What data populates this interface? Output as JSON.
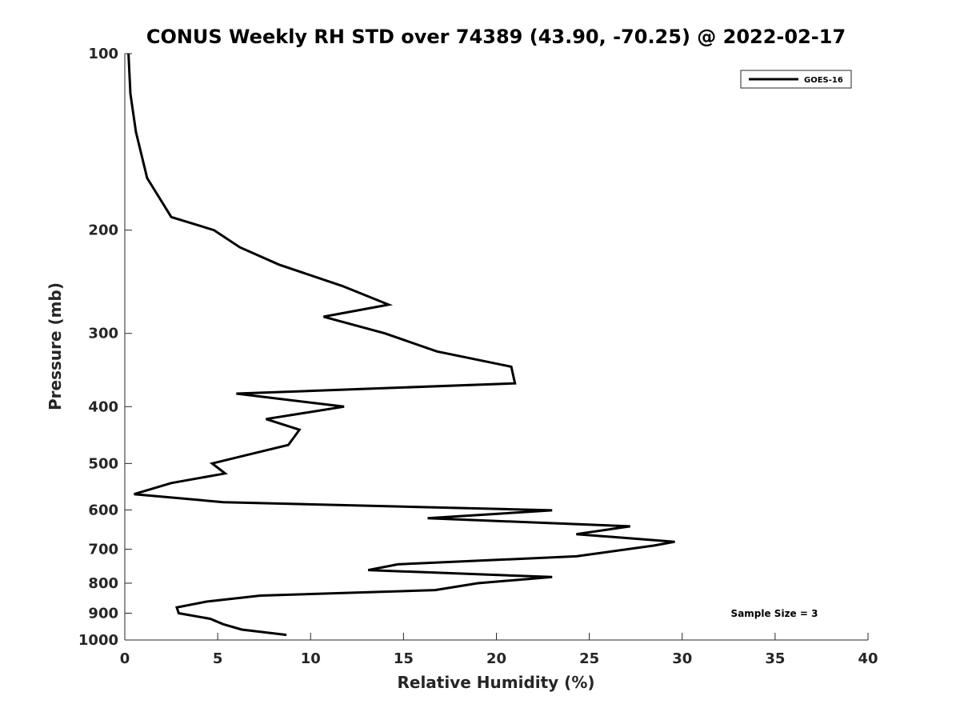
{
  "chart_data": {
    "type": "line",
    "title": "CONUS Weekly RH STD over 74389 (43.90, -70.25) @ 2022-02-17",
    "xlabel": "Relative Humidity (%)",
    "ylabel": "Pressure (mb)",
    "xlim": [
      0,
      40
    ],
    "ylim": [
      100,
      1000
    ],
    "y_scale": "log",
    "y_reversed": true,
    "grid": false,
    "legend_position": "top-right",
    "x_ticks": [
      "0",
      "5",
      "10",
      "15",
      "20",
      "25",
      "30",
      "35",
      "40"
    ],
    "y_ticks": [
      "100",
      "200",
      "300",
      "400",
      "500",
      "600",
      "700",
      "800",
      "900",
      "1000"
    ],
    "series": [
      {
        "name": "GOES-16",
        "color": "#000000",
        "points": [
          [
            0.2,
            100
          ],
          [
            0.3,
            117
          ],
          [
            0.6,
            136
          ],
          [
            1.2,
            163
          ],
          [
            2.5,
            190
          ],
          [
            4.8,
            200
          ],
          [
            6.2,
            214
          ],
          [
            8.3,
            229
          ],
          [
            11.7,
            249
          ],
          [
            14.2,
            268
          ],
          [
            10.7,
            281
          ],
          [
            14.0,
            300
          ],
          [
            16.8,
            322
          ],
          [
            20.8,
            342
          ],
          [
            21.0,
            365
          ],
          [
            6.0,
            380
          ],
          [
            11.8,
            400
          ],
          [
            7.6,
            420
          ],
          [
            9.4,
            438
          ],
          [
            8.8,
            465
          ],
          [
            7.0,
            480
          ],
          [
            4.7,
            500
          ],
          [
            5.4,
            520
          ],
          [
            2.5,
            540
          ],
          [
            0.5,
            564
          ],
          [
            5.3,
            582
          ],
          [
            23.0,
            601
          ],
          [
            16.3,
            620
          ],
          [
            27.2,
            640
          ],
          [
            24.3,
            660
          ],
          [
            29.6,
            680
          ],
          [
            28.5,
            690
          ],
          [
            24.3,
            720
          ],
          [
            14.7,
            743
          ],
          [
            13.1,
            760
          ],
          [
            23.0,
            781
          ],
          [
            19.0,
            800
          ],
          [
            16.7,
            822
          ],
          [
            7.3,
            840
          ],
          [
            4.4,
            860
          ],
          [
            2.8,
            880
          ],
          [
            2.9,
            900
          ],
          [
            4.6,
            920
          ],
          [
            5.3,
            940
          ],
          [
            6.3,
            960
          ],
          [
            8.7,
            980
          ]
        ]
      }
    ],
    "annotation": "Sample Size = 3"
  }
}
